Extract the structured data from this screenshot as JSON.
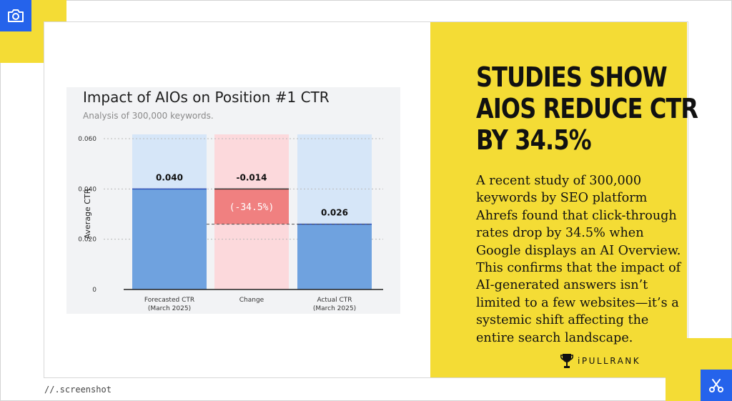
{
  "headline": [
    "STUDIES SHOW",
    "AIOS REDUCE CTR",
    "BY 34.5%"
  ],
  "body": "A recent study of 300,000 keywords by SEO platform Ahrefs found that click-through rates drop by 34.5% when Google displays an AI Overview. This confirms that the impact of AI-generated answers isn’t limited to a few websites—it’s a systemic shift affecting the entire search landscape.",
  "brand": "iPULLRANK",
  "footer": "//.screenshot",
  "icons": {
    "top_left": "camera-icon",
    "bottom_right": "scissors-icon",
    "brand": "trophy-icon"
  },
  "colors": {
    "yellow": "#f4dc35",
    "blue": "#2563eb",
    "bar_blue": "#6fa2df",
    "light_blue": "#d6e6f8",
    "bar_red": "#f08080",
    "light_red": "#fcd9dc"
  },
  "chart_data": {
    "type": "bar",
    "title": "Impact of AIOs on Position #1 CTR",
    "subtitle": "Analysis of 300,000 keywords.",
    "ylabel": "Average CTR",
    "xlabel": "",
    "ylim": [
      0,
      0.06
    ],
    "yticks": [
      "0",
      "0.020",
      "0.040",
      "0.060"
    ],
    "yticks_values": [
      0,
      0.02,
      0.04,
      0.06
    ],
    "grid": true,
    "categories": [
      [
        "Forecasted CTR",
        "(March 2025)"
      ],
      [
        "Change"
      ],
      [
        "Actual CTR",
        "(March 2025)"
      ]
    ],
    "bars": [
      {
        "name": "forecasted",
        "base": 0,
        "top": 0.04,
        "label": "0.040",
        "color": "#6fa2df",
        "bg": "#d6e6f8"
      },
      {
        "name": "change",
        "base": 0.026,
        "top": 0.04,
        "label": "-0.014",
        "inner_label": "(-34.5%)",
        "color": "#f08080",
        "bg": "#fcd9dc"
      },
      {
        "name": "actual",
        "base": 0,
        "top": 0.026,
        "label": "0.026",
        "color": "#6fa2df",
        "bg": "#d6e6f8"
      }
    ]
  }
}
